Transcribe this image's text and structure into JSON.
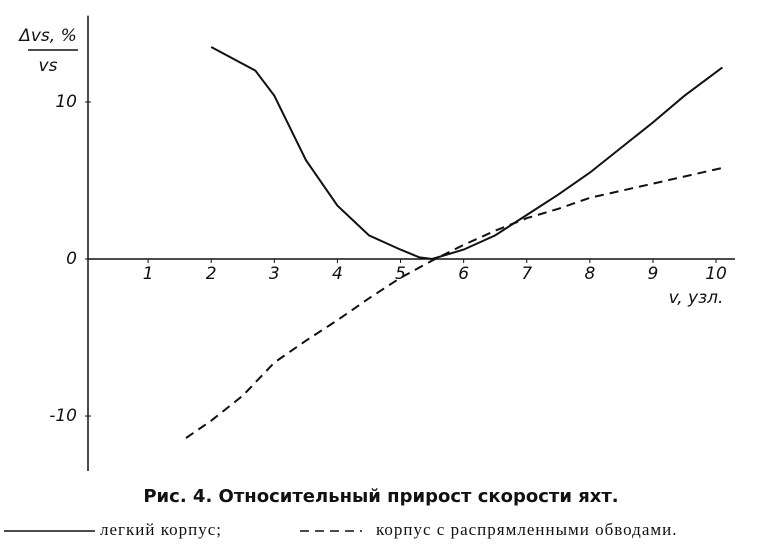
{
  "chart_data": {
    "type": "line",
    "title": "Рис. 4. Относительный прирост скорости яхт.",
    "ylabel": {
      "numerator": "Δvs, %",
      "denominator": "vs"
    },
    "xlabel": "v, узл.",
    "xlim": [
      0,
      10.3
    ],
    "ylim": [
      -13.5,
      15.5
    ],
    "xticks": [
      1,
      2,
      3,
      4,
      5,
      6,
      7,
      8,
      9,
      10
    ],
    "yticks": [
      -10,
      0,
      10
    ],
    "series": [
      {
        "name": "легкий корпус;",
        "color": "#111111",
        "dash": false,
        "x": [
          2,
          2.7,
          3,
          3.5,
          4,
          4.5,
          5,
          5.3,
          5.5,
          6,
          6.5,
          7,
          7.5,
          8,
          8.5,
          9,
          9.5,
          10.1
        ],
        "values": [
          13.5,
          12,
          10.4,
          6.3,
          3.4,
          1.5,
          0.6,
          0.1,
          0,
          0.6,
          1.5,
          2.8,
          4.1,
          5.5,
          7.1,
          8.7,
          10.4,
          12.2
        ]
      },
      {
        "name": "корпус с распрямленными обводами.",
        "color": "#111111",
        "dash": true,
        "x": [
          1.6,
          2,
          2.5,
          3,
          3.5,
          4,
          4.5,
          5,
          5.5,
          6,
          6.5,
          7,
          7.5,
          8,
          9,
          10.1
        ],
        "values": [
          -11.4,
          -10.3,
          -8.7,
          -6.6,
          -5.2,
          -3.9,
          -2.5,
          -1.2,
          -0.1,
          0.9,
          1.8,
          2.6,
          3.2,
          3.9,
          4.8,
          5.8
        ]
      }
    ]
  }
}
